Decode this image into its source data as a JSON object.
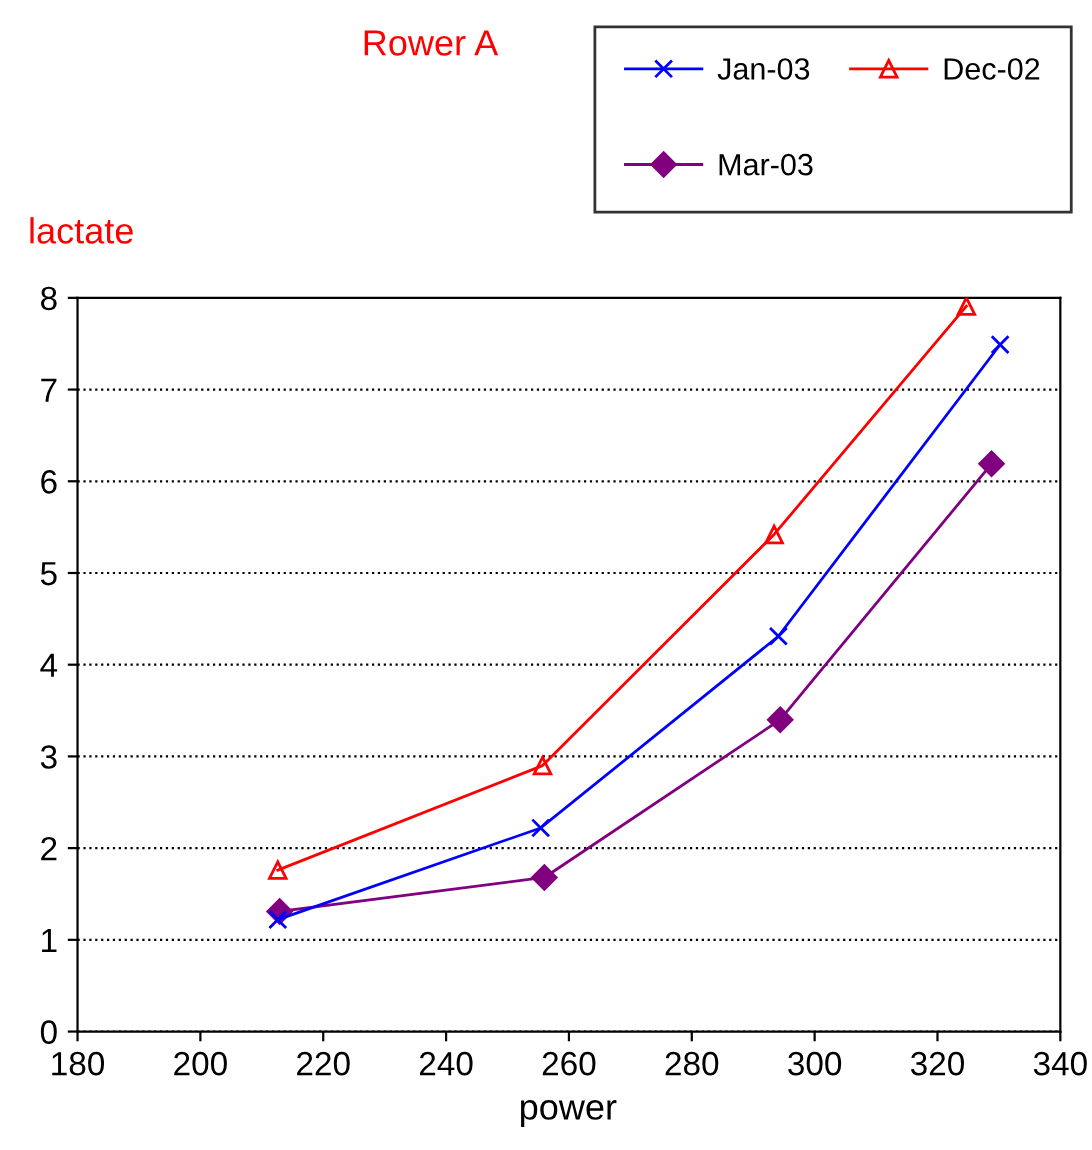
{
  "chart_data": {
    "type": "line",
    "title": "Rower A",
    "ylabel": "lactate",
    "xlabel": "power",
    "series": [
      {
        "name": "Jan-03",
        "color": "#0000ff",
        "marker": "cross",
        "x": [
          212.6,
          255.4,
          294.1,
          330.2
        ],
        "values": [
          1.22,
          2.22,
          4.31,
          7.49
        ]
      },
      {
        "name": "Dec-02",
        "color": "#ff0000",
        "marker": "triangle",
        "x": [
          212.6,
          255.7,
          293.4,
          324.7
        ],
        "values": [
          1.76,
          2.9,
          5.42,
          7.91
        ]
      },
      {
        "name": "Mar-03",
        "color": "#800080",
        "marker": "diamond",
        "x": [
          212.9,
          256.0,
          294.4,
          328.8
        ],
        "values": [
          1.31,
          1.68,
          3.4,
          6.19
        ]
      }
    ],
    "xlim": [
      180,
      340
    ],
    "xticks": [
      180,
      200,
      220,
      240,
      260,
      280,
      300,
      320,
      340
    ],
    "ylim": [
      0,
      8
    ],
    "yticks": [
      0,
      1,
      2,
      3,
      4,
      5,
      6,
      7,
      8
    ],
    "grid": "y",
    "legend": "top right",
    "line_style": "solid"
  }
}
